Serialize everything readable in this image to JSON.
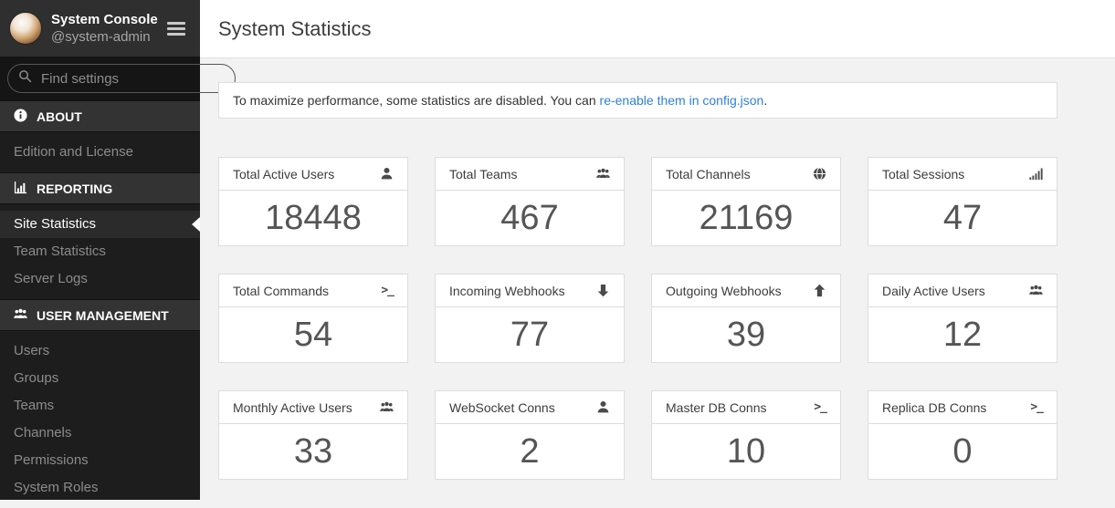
{
  "colors": {
    "link": "#2f81d7",
    "sidebar_bg": "#1d1d1d",
    "sidebar_header_bg": "#2f2f2f",
    "section_header_bg": "#333333",
    "active_item_bg": "#2b2b2b",
    "content_bg": "#f2f2f2",
    "card_border": "#dddddd",
    "value_color": "#555555"
  },
  "sidebar": {
    "header": {
      "title": "System Console",
      "subtitle": "@system-admin",
      "menu_icon": "menu"
    },
    "search": {
      "placeholder": "Find settings",
      "icon": "search"
    },
    "sections": [
      {
        "id": "about",
        "label": "ABOUT",
        "icon": "info",
        "items": [
          {
            "id": "edition-and-license",
            "label": "Edition and License",
            "active": false
          }
        ]
      },
      {
        "id": "reporting",
        "label": "REPORTING",
        "icon": "bar-chart",
        "items": [
          {
            "id": "site-statistics",
            "label": "Site Statistics",
            "active": true
          },
          {
            "id": "team-statistics",
            "label": "Team Statistics",
            "active": false
          },
          {
            "id": "server-logs",
            "label": "Server Logs",
            "active": false
          }
        ]
      },
      {
        "id": "user-management",
        "label": "USER MANAGEMENT",
        "icon": "users",
        "items": [
          {
            "id": "users",
            "label": "Users",
            "active": false
          },
          {
            "id": "groups",
            "label": "Groups",
            "active": false
          },
          {
            "id": "teams",
            "label": "Teams",
            "active": false
          },
          {
            "id": "channels",
            "label": "Channels",
            "active": false
          },
          {
            "id": "permissions",
            "label": "Permissions",
            "active": false
          },
          {
            "id": "system-roles",
            "label": "System Roles",
            "active": false
          }
        ]
      }
    ]
  },
  "main": {
    "title": "System Statistics",
    "banner": {
      "text_before": "To maximize performance, some statistics are disabled. You can ",
      "link_text": "re-enable them in config.json",
      "text_after": "."
    },
    "cards": [
      {
        "id": "total-active-users",
        "label": "Total Active Users",
        "value": "18448",
        "icon": "user"
      },
      {
        "id": "total-teams",
        "label": "Total Teams",
        "value": "467",
        "icon": "users"
      },
      {
        "id": "total-channels",
        "label": "Total Channels",
        "value": "21169",
        "icon": "globe"
      },
      {
        "id": "total-sessions",
        "label": "Total Sessions",
        "value": "47",
        "icon": "signal"
      },
      {
        "id": "total-commands",
        "label": "Total Commands",
        "value": "54",
        "icon": "terminal"
      },
      {
        "id": "incoming-webhooks",
        "label": "Incoming Webhooks",
        "value": "77",
        "icon": "arrow-down"
      },
      {
        "id": "outgoing-webhooks",
        "label": "Outgoing Webhooks",
        "value": "39",
        "icon": "arrow-up"
      },
      {
        "id": "daily-active-users",
        "label": "Daily Active Users",
        "value": "12",
        "icon": "users"
      },
      {
        "id": "monthly-active-users",
        "label": "Monthly Active Users",
        "value": "33",
        "icon": "users"
      },
      {
        "id": "websocket-conns",
        "label": "WebSocket Conns",
        "value": "2",
        "icon": "user"
      },
      {
        "id": "master-db-conns",
        "label": "Master DB Conns",
        "value": "10",
        "icon": "terminal"
      },
      {
        "id": "replica-db-conns",
        "label": "Replica DB Conns",
        "value": "0",
        "icon": "terminal"
      }
    ]
  }
}
